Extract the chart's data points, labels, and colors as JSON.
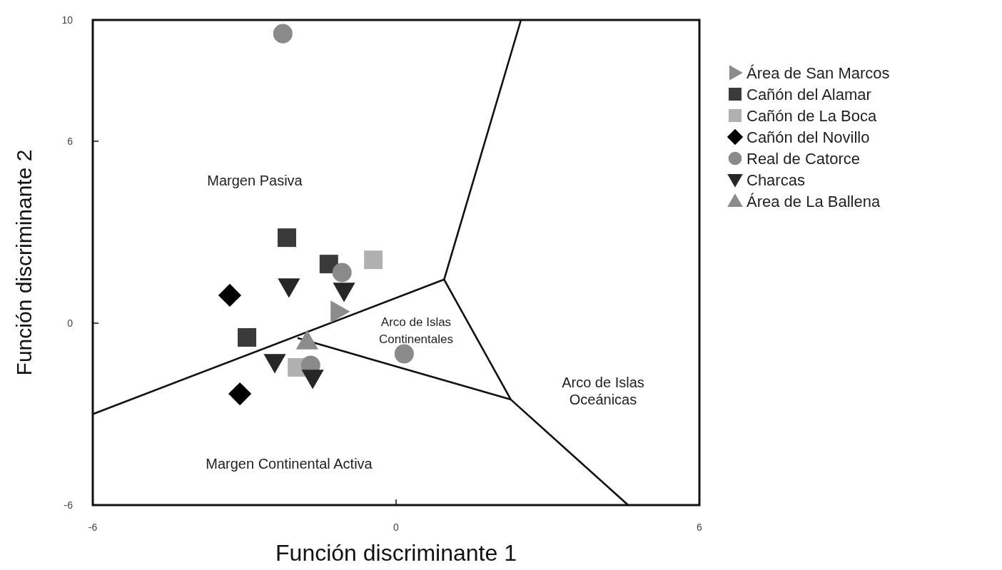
{
  "chart_data": {
    "type": "scatter",
    "xlabel": "Función discriminante 1",
    "ylabel": "Función discriminante 2",
    "xlim": [
      -6,
      6
    ],
    "ylim": [
      -6,
      10
    ],
    "xticks": [
      -6,
      0,
      6
    ],
    "yticks": [
      -6,
      0,
      6,
      10
    ],
    "legend": "right",
    "grid": false,
    "series": [
      {
        "type": "line",
        "color": "#111111",
        "marker": "none",
        "x": [
          -6,
          0.95,
          2.47
        ],
        "values": [
          -3,
          1.44,
          10
        ]
      },
      {
        "type": "line",
        "color": "#111111",
        "marker": "none",
        "x": [
          0.95,
          2.27,
          4.59
        ],
        "values": [
          1.44,
          -2.52,
          -6
        ]
      },
      {
        "type": "line",
        "color": "#111111",
        "marker": "none",
        "x": [
          -1.95,
          2.27
        ],
        "values": [
          -0.49,
          -2.52
        ]
      },
      {
        "name": "Área de San Marcos",
        "color": "#8c8c8c",
        "marker": "triangle-right",
        "x": [
          -1.13
        ],
        "values": [
          0.38
        ]
      },
      {
        "name": "Cañón del Alamar",
        "color": "#3a3a3a",
        "marker": "square",
        "x": [
          -2.16,
          -1.33,
          -2.95
        ],
        "values": [
          2.82,
          1.95,
          -0.47
        ]
      },
      {
        "name": "Cañón de La Boca",
        "color": "#b0b0b0",
        "marker": "square",
        "x": [
          -0.45,
          -1.96
        ],
        "values": [
          2.09,
          -1.46
        ]
      },
      {
        "name": "Cañón del Novillo",
        "color": "#000000",
        "marker": "diamond",
        "x": [
          -3.29,
          -3.09
        ],
        "values": [
          0.92,
          -2.33
        ]
      },
      {
        "name": "Real de Catorce",
        "color": "#8a8a8a",
        "marker": "circle",
        "x": [
          -2.24,
          -1.07,
          0.16,
          -1.69
        ],
        "values": [
          9.55,
          1.67,
          -1.01,
          -1.39
        ]
      },
      {
        "name": "Charcas",
        "color": "#262626",
        "marker": "triangle-down",
        "x": [
          -2.12,
          -1.03,
          -2.4,
          -1.65
        ],
        "values": [
          1.2,
          1.06,
          -1.29,
          -1.81
        ]
      },
      {
        "name": "Área de La Ballena",
        "color": "#8c8c8c",
        "marker": "triangle",
        "x": [
          -1.76
        ],
        "values": [
          -0.59
        ]
      }
    ],
    "annotations": [
      "Margen Pasiva",
      "Margen Continental Activa",
      "Arco de Islas\nContinentales",
      "Arco de Islas\nOceánicas"
    ]
  }
}
